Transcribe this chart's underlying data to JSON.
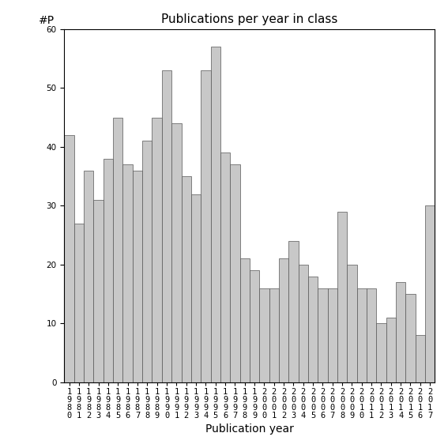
{
  "title": "Publications per year in class",
  "xlabel": "Publication year",
  "ylabel": "#P",
  "years": [
    "1980",
    "1981",
    "1982",
    "1983",
    "1984",
    "1985",
    "1986",
    "1987",
    "1988",
    "1989",
    "1990",
    "1991",
    "1992",
    "1993",
    "1994",
    "1995",
    "1996",
    "1997",
    "1998",
    "1999",
    "2000",
    "2001",
    "2002",
    "2003",
    "2004",
    "2005",
    "2006",
    "2007",
    "2008",
    "2009",
    "2010",
    "2011",
    "2012",
    "2013",
    "2014",
    "2015",
    "2016",
    "2017"
  ],
  "values": [
    42,
    27,
    36,
    31,
    38,
    45,
    37,
    36,
    41,
    45,
    53,
    44,
    35,
    32,
    53,
    57,
    39,
    37,
    21,
    19,
    16,
    16,
    21,
    24,
    20,
    18,
    16,
    16,
    29,
    20,
    16,
    16,
    10,
    11,
    17,
    15,
    8,
    30
  ],
  "bar_color": "#c8c8c8",
  "bar_edge_color": "#555555",
  "ylim": [
    0,
    60
  ],
  "yticks": [
    0,
    10,
    20,
    30,
    40,
    50,
    60
  ],
  "background_color": "#ffffff",
  "title_fontsize": 11,
  "axis_label_fontsize": 10,
  "tick_fontsize": 7.5
}
